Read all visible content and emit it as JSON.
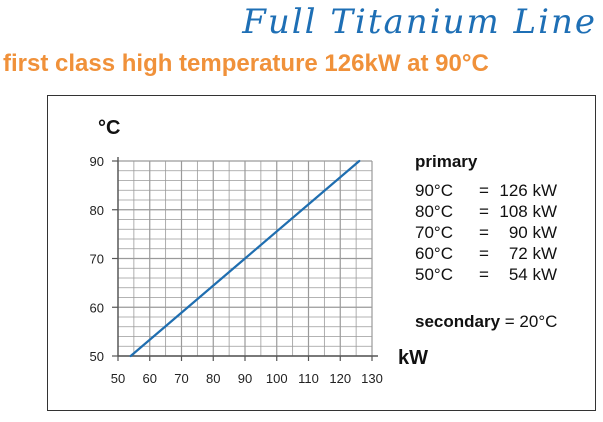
{
  "header": {
    "script_title": "Full Titanium Line",
    "headline": "first class high temperature 126kW at 90°C"
  },
  "legend": {
    "primary_title": "primary",
    "primary_rows": [
      {
        "temp": "90°C",
        "eq": "=",
        "power": "126 kW"
      },
      {
        "temp": "80°C",
        "eq": "=",
        "power": "108 kW"
      },
      {
        "temp": "70°C",
        "eq": "=",
        "power": "90 kW"
      },
      {
        "temp": "60°C",
        "eq": "=",
        "power": "72 kW"
      },
      {
        "temp": "50°C",
        "eq": "=",
        "power": "54 kW"
      }
    ],
    "secondary_label": "secondary",
    "secondary_value": " = 20°C"
  },
  "colors": {
    "script_title": "#1e6fb5",
    "headline": "#f0913a",
    "line": "#1f6eb0",
    "grid": "#9a9a9a"
  },
  "chart_data": {
    "type": "line",
    "title": "",
    "xlabel": "kW",
    "ylabel": "°C",
    "xlim": [
      50,
      130
    ],
    "ylim": [
      50,
      90
    ],
    "xticks": [
      50,
      60,
      70,
      80,
      90,
      100,
      110,
      120,
      130
    ],
    "yticks": [
      50,
      60,
      70,
      80,
      90
    ],
    "grid": true,
    "series": [
      {
        "x": [
          54,
          72,
          90,
          108,
          126
        ],
        "y": [
          50,
          60,
          70,
          80,
          90
        ]
      }
    ]
  }
}
